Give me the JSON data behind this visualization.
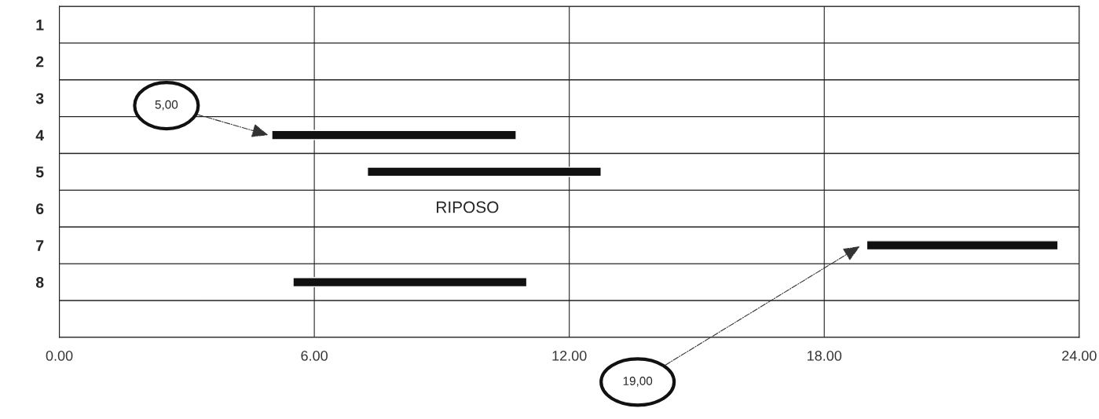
{
  "chart_data": {
    "type": "bar",
    "orientation": "horizontal",
    "categories": [
      "1",
      "2",
      "3",
      "4",
      "5",
      "6",
      "7",
      "8",
      null
    ],
    "values": [
      null,
      null,
      null,
      5.75,
      5.5,
      null,
      4.5,
      5.5,
      null
    ],
    "base": [
      null,
      null,
      null,
      5,
      7.25,
      null,
      19,
      5.5,
      null
    ],
    "color": "#111111",
    "xlim": [
      0,
      24
    ],
    "xticks": [
      {
        "value": 0,
        "label": "0.00"
      },
      {
        "value": 6,
        "label": "6.00"
      },
      {
        "value": 12,
        "label": "12.00"
      },
      {
        "value": 18,
        "label": "18.00"
      },
      {
        "value": 24,
        "label": "24.00"
      }
    ],
    "grid": true,
    "annotations": [
      "5,00",
      "19,00",
      "RIPOSO"
    ]
  }
}
